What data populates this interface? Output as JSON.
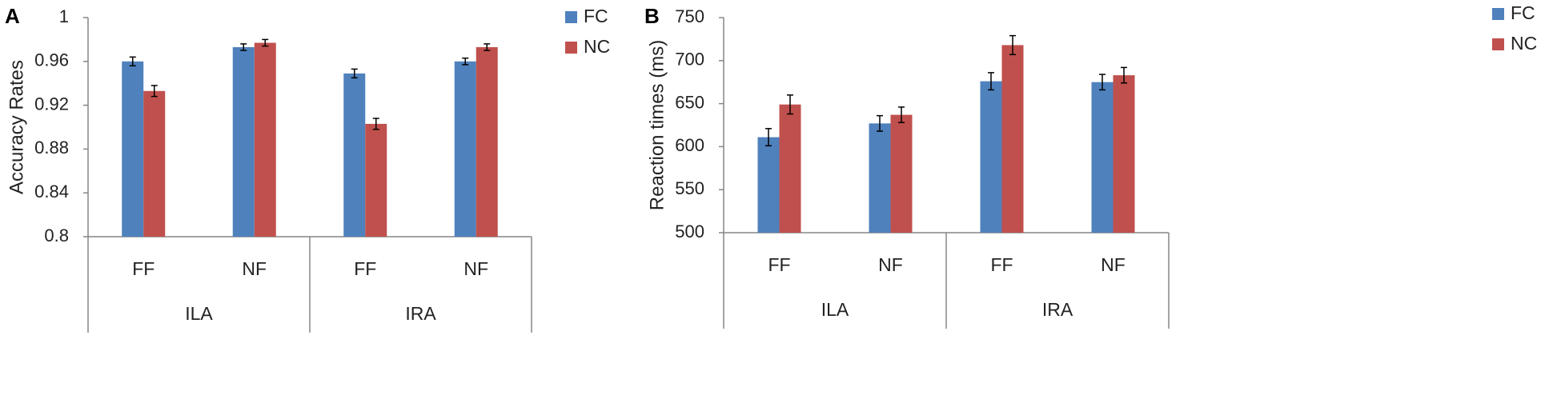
{
  "chart_data": [
    {
      "type": "bar",
      "panel": "A",
      "ylabel": "Accuracy Rates",
      "ylim": [
        0.8,
        1.0
      ],
      "yticks": [
        "0.8",
        "0.84",
        "0.88",
        "0.92",
        "0.96",
        "1"
      ],
      "groups": [
        "ILA",
        "IRA"
      ],
      "categories": [
        "FF",
        "NF",
        "FF",
        "NF"
      ],
      "series": [
        {
          "name": "FC",
          "color": "#4F81BD",
          "values": [
            0.96,
            0.973,
            0.949,
            0.96
          ],
          "errors": [
            0.004,
            0.003,
            0.004,
            0.003
          ]
        },
        {
          "name": "NC",
          "color": "#C0504D",
          "values": [
            0.933,
            0.977,
            0.903,
            0.973
          ],
          "errors": [
            0.005,
            0.003,
            0.005,
            0.003
          ]
        }
      ]
    },
    {
      "type": "bar",
      "panel": "B",
      "ylabel": "Reaction times (ms)",
      "ylim": [
        500,
        750
      ],
      "yticks": [
        "500",
        "550",
        "600",
        "650",
        "700",
        "750"
      ],
      "groups": [
        "ILA",
        "IRA"
      ],
      "categories": [
        "FF",
        "NF",
        "FF",
        "NF"
      ],
      "series": [
        {
          "name": "FC",
          "color": "#4F81BD",
          "values": [
            611,
            627,
            676,
            675
          ],
          "errors": [
            10,
            9,
            10,
            9
          ]
        },
        {
          "name": "NC",
          "color": "#C0504D",
          "values": [
            649,
            637,
            718,
            683
          ],
          "errors": [
            11,
            9,
            11,
            9
          ]
        }
      ]
    }
  ]
}
